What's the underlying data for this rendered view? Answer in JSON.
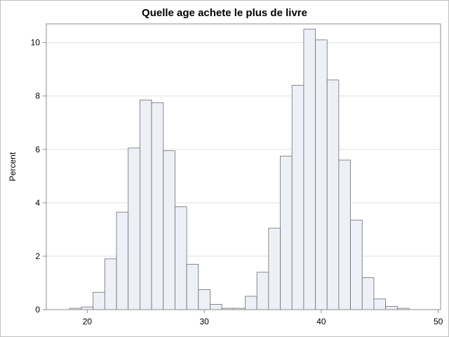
{
  "colors": {
    "bar_fill": "#edf0f6",
    "bar_stroke": "#6e6e6e",
    "grid": "#e1e1e1",
    "frame": "#8c8c8c",
    "text": "#000000"
  },
  "chart_data": {
    "type": "bar",
    "title": "Quelle age achete le plus de livre",
    "xlabel": "",
    "ylabel": "Percent",
    "bin_width": 1,
    "bins": [
      {
        "x": 19,
        "value": 0.05
      },
      {
        "x": 20,
        "value": 0.1
      },
      {
        "x": 21,
        "value": 0.65
      },
      {
        "x": 22,
        "value": 1.9
      },
      {
        "x": 23,
        "value": 3.65
      },
      {
        "x": 24,
        "value": 6.05
      },
      {
        "x": 25,
        "value": 7.85
      },
      {
        "x": 26,
        "value": 7.75
      },
      {
        "x": 27,
        "value": 5.95
      },
      {
        "x": 28,
        "value": 3.85
      },
      {
        "x": 29,
        "value": 1.7
      },
      {
        "x": 30,
        "value": 0.75
      },
      {
        "x": 31,
        "value": 0.2
      },
      {
        "x": 32,
        "value": 0.05
      },
      {
        "x": 33,
        "value": 0.05
      },
      {
        "x": 34,
        "value": 0.5
      },
      {
        "x": 35,
        "value": 1.4
      },
      {
        "x": 36,
        "value": 3.05
      },
      {
        "x": 37,
        "value": 5.75
      },
      {
        "x": 38,
        "value": 8.4
      },
      {
        "x": 39,
        "value": 10.5
      },
      {
        "x": 40,
        "value": 10.1
      },
      {
        "x": 41,
        "value": 8.6
      },
      {
        "x": 42,
        "value": 5.6
      },
      {
        "x": 43,
        "value": 3.35
      },
      {
        "x": 44,
        "value": 1.2
      },
      {
        "x": 45,
        "value": 0.4
      },
      {
        "x": 46,
        "value": 0.12
      },
      {
        "x": 47,
        "value": 0.05
      }
    ],
    "xlim": [
      16.5,
      50.2
    ],
    "ylim": [
      0,
      10.7
    ],
    "xticks": [
      20,
      30,
      40,
      50
    ],
    "yticks": [
      0,
      2,
      4,
      6,
      8,
      10
    ],
    "grid": true,
    "legend": "none"
  }
}
